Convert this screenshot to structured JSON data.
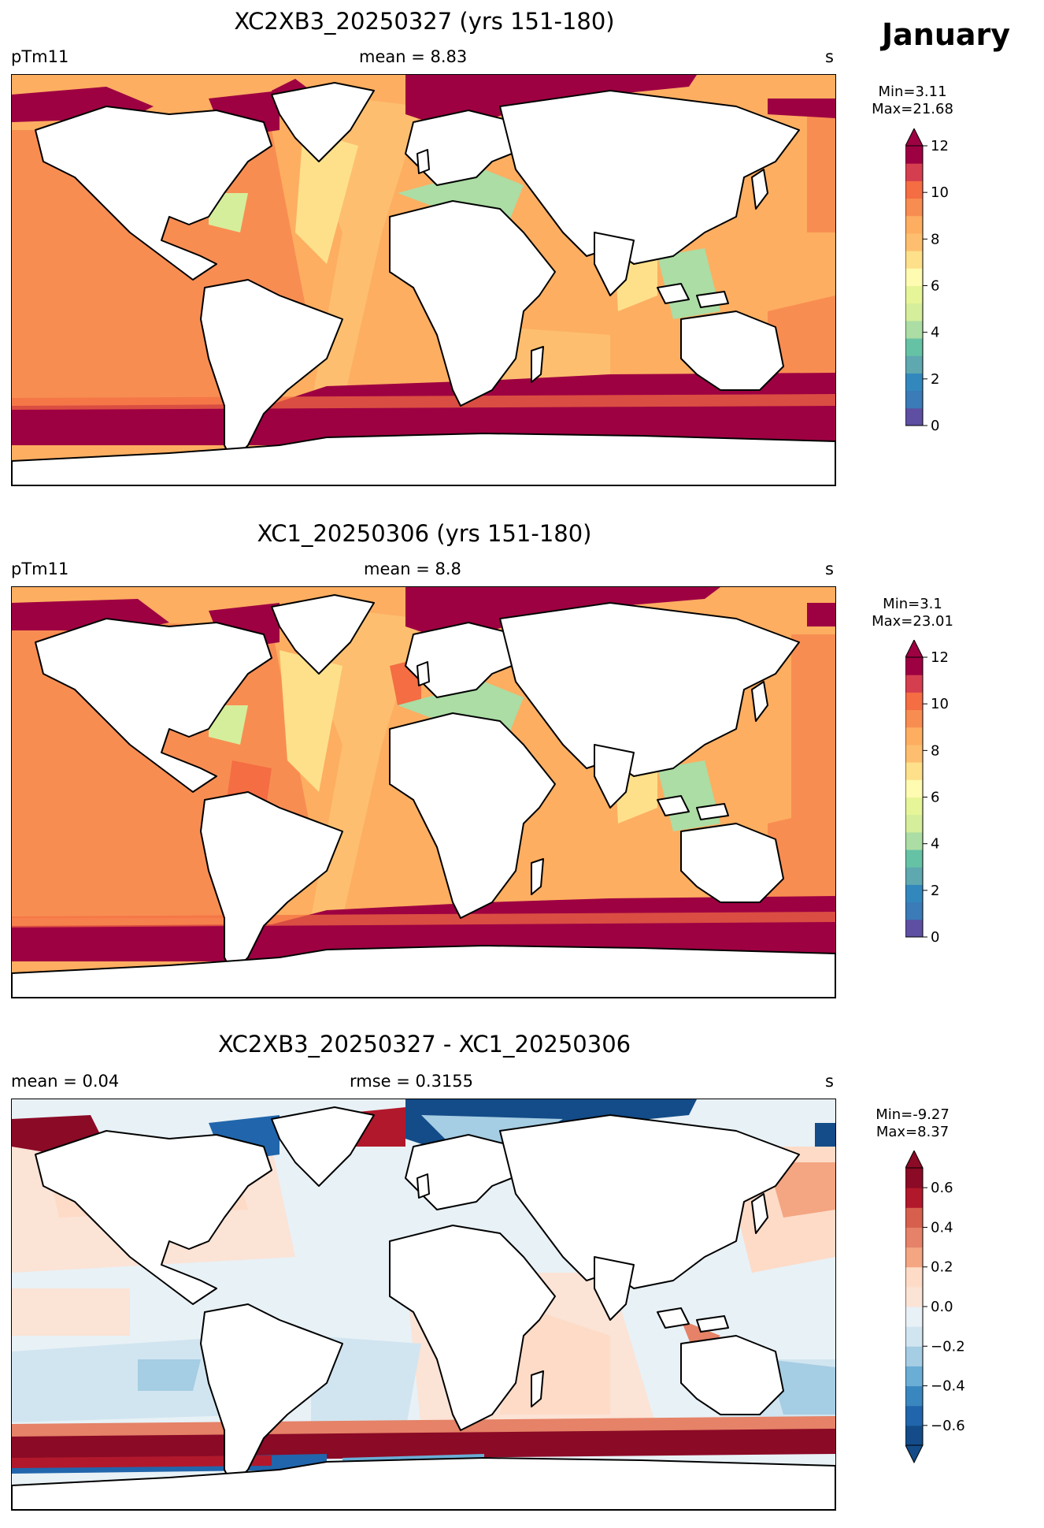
{
  "month": "January",
  "panels": [
    {
      "id": "p1",
      "title": "XC2XB3_20250327 (yrs 151-180)",
      "left": "pTm11",
      "center": "mean = 8.83",
      "right": "s",
      "cb_min": "Min=3.11",
      "cb_max": "Max=21.68",
      "colorbar": {
        "colors": [
          "#5e4fa2",
          "#3a7bb8",
          "#3288bd",
          "#5fa8b0",
          "#66c2a5",
          "#abdda4",
          "#d5ee9b",
          "#e6f598",
          "#fffbb0",
          "#fee08b",
          "#fdbf6f",
          "#fdae61",
          "#f88d52",
          "#f46d43",
          "#d53e4f",
          "#9e0142"
        ],
        "ticks": [
          "0",
          "2",
          "4",
          "6",
          "8",
          "10",
          "12"
        ],
        "extend": "max"
      }
    },
    {
      "id": "p2",
      "title": "XC1_20250306 (yrs 151-180)",
      "left": "pTm11",
      "center": "mean = 8.8",
      "right": "s",
      "cb_min": "Min=3.1",
      "cb_max": "Max=23.01",
      "colorbar": {
        "colors": [
          "#5e4fa2",
          "#3a7bb8",
          "#3288bd",
          "#5fa8b0",
          "#66c2a5",
          "#abdda4",
          "#d5ee9b",
          "#e6f598",
          "#fffbb0",
          "#fee08b",
          "#fdbf6f",
          "#fdae61",
          "#f88d52",
          "#f46d43",
          "#d53e4f",
          "#9e0142"
        ],
        "ticks": [
          "0",
          "2",
          "4",
          "6",
          "8",
          "10",
          "12"
        ],
        "extend": "max"
      }
    },
    {
      "id": "p3",
      "title": "XC2XB3_20250327 - XC1_20250306",
      "left": "mean = 0.04",
      "center": "rmse = 0.3155",
      "right": "s",
      "cb_min": "Min=-9.27",
      "cb_max": "Max=8.37",
      "colorbar": {
        "colors": [
          "#134c88",
          "#2166ac",
          "#3a87c0",
          "#6aaed6",
          "#a5cde3",
          "#d1e5f0",
          "#e8f1f6",
          "#fbe3d6",
          "#fddbc7",
          "#f4a582",
          "#e58267",
          "#d6604d",
          "#b2182b",
          "#8b0a26"
        ],
        "ticks": [
          "−0.6",
          "−0.4",
          "−0.2",
          "0.0",
          "0.2",
          "0.4",
          "0.6"
        ],
        "extend": "both"
      }
    }
  ],
  "colors": {
    "land": "#ffffff",
    "coast": "#000000",
    "ocean_p1": "#fdae61",
    "ocean_p3": "#e8f1f6"
  }
}
